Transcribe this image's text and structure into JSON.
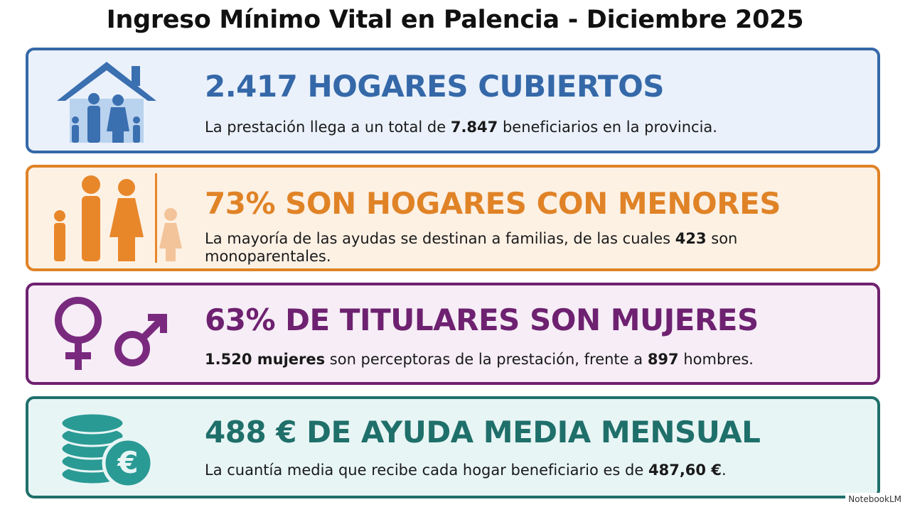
{
  "title": "Ingreso Mínimo Vital en Palencia - Diciembre 2025",
  "cards": [
    {
      "heading": "2.417 HOGARES CUBIERTOS",
      "color": "#3568a8",
      "description": [
        {
          "text": "La prestación llega a un total de "
        },
        {
          "text": "7.847",
          "bold": true
        },
        {
          "text": " beneficiarios en la provincia."
        }
      ]
    },
    {
      "heading": "73% SON HOGARES CON MENORES",
      "color": "#e08327",
      "description": [
        {
          "text": "La mayoría de las ayudas se destinan a familias, de las cuales "
        },
        {
          "text": "423",
          "bold": true
        },
        {
          "text": " son monoparentales."
        }
      ]
    },
    {
      "heading": "63% DE TITULARES SON MUJERES",
      "color": "#6e2170",
      "description": [
        {
          "text": "1.520 mujeres",
          "bold": true
        },
        {
          "text": " son perceptoras de la prestación, frente a "
        },
        {
          "text": "897",
          "bold": true
        },
        {
          "text": " hombres."
        }
      ]
    },
    {
      "heading": "488 € DE AYUDA MEDIA MENSUAL",
      "color": "#1f6f6a",
      "description": [
        {
          "text": "La cuantía media que recibe cada hogar beneficiario es de "
        },
        {
          "text": "487,60 €",
          "bold": true
        },
        {
          "text": "."
        }
      ]
    }
  ],
  "brand": "NotebookLM"
}
